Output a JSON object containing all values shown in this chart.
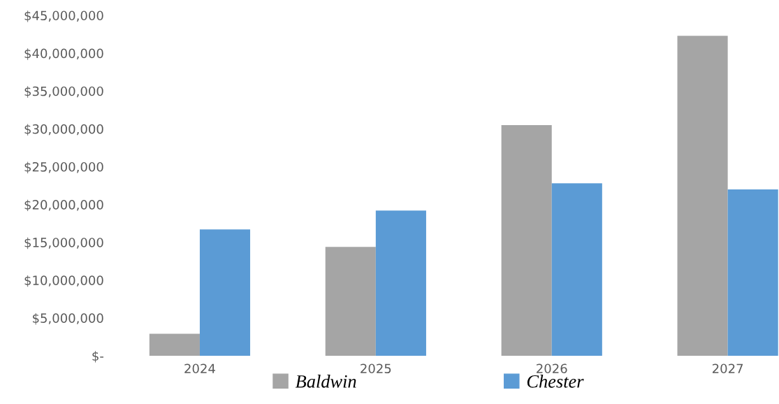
{
  "chart_data": {
    "type": "bar",
    "categories": [
      "2024",
      "2025",
      "2026",
      "2027"
    ],
    "series": [
      {
        "name": "Baldwin",
        "color": "#a5a5a5",
        "values": [
          2900000,
          14400000,
          30500000,
          42300000
        ]
      },
      {
        "name": "Chester",
        "color": "#5b9bd5",
        "values": [
          16700000,
          19200000,
          22800000,
          22000000
        ]
      }
    ],
    "ylim": [
      0,
      45000000
    ],
    "yticks": [
      {
        "value": 0,
        "label": "$-"
      },
      {
        "value": 5000000,
        "label": "$5,000,000"
      },
      {
        "value": 10000000,
        "label": "$10,000,000"
      },
      {
        "value": 15000000,
        "label": "$15,000,000"
      },
      {
        "value": 20000000,
        "label": "$20,000,000"
      },
      {
        "value": 25000000,
        "label": "$25,000,000"
      },
      {
        "value": 30000000,
        "label": "$30,000,000"
      },
      {
        "value": 35000000,
        "label": "$35,000,000"
      },
      {
        "value": 40000000,
        "label": "$40,000,000"
      },
      {
        "value": 45000000,
        "label": "$45,000,000"
      }
    ],
    "grid": false,
    "legend": "bottom"
  }
}
